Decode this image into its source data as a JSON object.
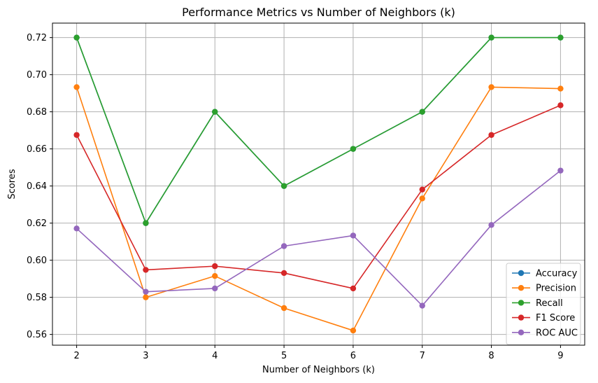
{
  "chart_data": {
    "type": "line",
    "title": "Performance Metrics vs Number of Neighbors (k)",
    "xlabel": "Number of Neighbors (k)",
    "ylabel": "Scores",
    "x": [
      2,
      3,
      4,
      5,
      6,
      7,
      8,
      9
    ],
    "xticks": [
      "2",
      "3",
      "4",
      "5",
      "6",
      "7",
      "8",
      "9"
    ],
    "yticks": [
      "0.56",
      "0.58",
      "0.60",
      "0.62",
      "0.64",
      "0.66",
      "0.68",
      "0.70",
      "0.72"
    ],
    "xlim": [
      1.65,
      9.35
    ],
    "ylim": [
      0.5542,
      0.7278
    ],
    "grid": true,
    "legend_position": "lower-right",
    "series": [
      {
        "name": "Accuracy",
        "color": "#1f77b4",
        "values": [
          0.72,
          0.62,
          0.68,
          0.64,
          0.66,
          0.68,
          0.72,
          0.72
        ]
      },
      {
        "name": "Precision",
        "color": "#ff7f0e",
        "values": [
          0.6933,
          0.58,
          0.5915,
          0.5742,
          0.5621,
          0.6333,
          0.6933,
          0.6925
        ]
      },
      {
        "name": "Recall",
        "color": "#2ca02c",
        "values": [
          0.72,
          0.62,
          0.68,
          0.64,
          0.66,
          0.68,
          0.72,
          0.72
        ]
      },
      {
        "name": "F1 Score",
        "color": "#d62728",
        "values": [
          0.6675,
          0.5948,
          0.5968,
          0.5931,
          0.5848,
          0.6381,
          0.6675,
          0.6835
        ]
      },
      {
        "name": "ROC AUC",
        "color": "#9467bd",
        "values": [
          0.6171,
          0.583,
          0.5848,
          0.6076,
          0.6133,
          0.5755,
          0.619,
          0.6483
        ]
      }
    ]
  }
}
